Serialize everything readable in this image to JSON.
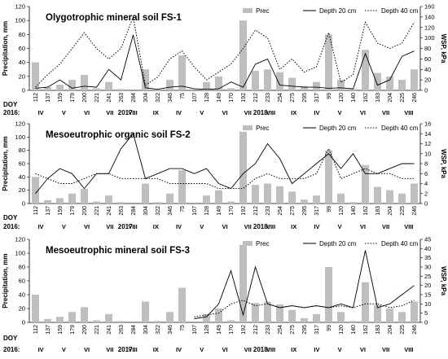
{
  "row_labels": {
    "doy": "DOY",
    "year": "2016:"
  },
  "months": [
    "IV",
    "V",
    "VI",
    "VII",
    "VIII",
    "IX",
    "IV",
    "V",
    "VI",
    "VII",
    "VIII",
    "IX",
    "IV",
    "V",
    "VI",
    "VII",
    "VIII"
  ],
  "years": [
    {
      "label": "2017:",
      "at_index": 14
    },
    {
      "label": "2018:",
      "at_index": 32
    }
  ],
  "colors": {
    "bars": "#bfbfbf",
    "line20": "#000000",
    "line40": "#000000"
  },
  "chart_data": [
    {
      "type": "bar",
      "title": "Olygotrophic mineral soil FS-1",
      "xlabel": "DOY",
      "ylabel": "Precipitation, mm",
      "y2label": "WSP, kPa",
      "ylim": [
        0,
        120
      ],
      "y2lim": [
        0,
        160
      ],
      "yticks": [
        0,
        20,
        40,
        60,
        80,
        100,
        120
      ],
      "y2ticks": [
        0,
        20,
        40,
        60,
        80,
        100,
        120,
        140,
        160
      ],
      "legend": [
        "Prec",
        "Depth 20 cm",
        "Depth 40 cm"
      ],
      "legend_position": "top-right",
      "categories": [
        "112",
        "137",
        "159",
        "179",
        "200",
        "221",
        "241",
        "263",
        "284",
        "304",
        "322",
        "346",
        "75",
        "107",
        "128",
        "149",
        "170",
        "192",
        "212",
        "233",
        "254",
        "275",
        "295",
        "317",
        "99",
        "120",
        "140",
        "162",
        "183",
        "204",
        "225",
        "246"
      ],
      "series": [
        {
          "name": "Prec",
          "kind": "bar",
          "values": [
            40,
            5,
            8,
            15,
            22,
            3,
            12,
            2,
            0,
            30,
            2,
            15,
            50,
            0,
            12,
            20,
            3,
            100,
            28,
            30,
            26,
            18,
            6,
            12,
            80,
            15,
            2,
            58,
            25,
            20,
            15,
            30
          ]
        },
        {
          "name": "Depth 20 cm",
          "kind": "line",
          "values": [
            4,
            6,
            20,
            4,
            8,
            6,
            40,
            20,
            106,
            5,
            2,
            6,
            8,
            3,
            2,
            3,
            16,
            6,
            50,
            60,
            10,
            8,
            6,
            6,
            4,
            5,
            3,
            70,
            10,
            20,
            65,
            75
          ]
        },
        {
          "name": "Depth 40 cm",
          "kind": "dotted",
          "values": [
            6,
            30,
            50,
            80,
            110,
            80,
            60,
            80,
            140,
            10,
            25,
            60,
            75,
            45,
            20,
            35,
            50,
            80,
            115,
            100,
            40,
            60,
            35,
            45,
            110,
            15,
            30,
            130,
            90,
            80,
            90,
            130
          ]
        }
      ]
    },
    {
      "type": "bar",
      "title": "Mesoeutrophic organic soil FS-2",
      "xlabel": "DOY",
      "ylabel": "Precipitation, mm",
      "y2label": "WSP, kPa",
      "ylim": [
        0,
        120
      ],
      "y2lim": [
        0,
        16
      ],
      "yticks": [
        0,
        20,
        40,
        60,
        80,
        100,
        120
      ],
      "y2ticks": [
        0,
        2,
        4,
        6,
        8,
        10,
        12,
        14,
        16
      ],
      "legend": [
        "Prec",
        "Depth 20 cm",
        "Depth 40 cm"
      ],
      "legend_position": "top-right",
      "categories": [
        "112",
        "137",
        "159",
        "179",
        "200",
        "221",
        "241",
        "263",
        "284",
        "304",
        "322",
        "346",
        "75",
        "107",
        "128",
        "149",
        "170",
        "192",
        "212",
        "233",
        "254",
        "275",
        "295",
        "317",
        "99",
        "120",
        "140",
        "162",
        "183",
        "204",
        "225",
        "246"
      ],
      "series": [
        {
          "name": "Prec",
          "kind": "bar",
          "values": [
            40,
            5,
            8,
            15,
            22,
            3,
            12,
            2,
            0,
            30,
            2,
            15,
            50,
            0,
            12,
            20,
            3,
            108,
            28,
            30,
            26,
            18,
            6,
            12,
            80,
            15,
            2,
            58,
            25,
            20,
            15,
            30
          ]
        },
        {
          "name": "Depth 20 cm",
          "kind": "line",
          "values": [
            2,
            5,
            7,
            6,
            3,
            6,
            6,
            11,
            14,
            5,
            6,
            7,
            7,
            6,
            7,
            4,
            3,
            6,
            8,
            12,
            9,
            4,
            6,
            8,
            10,
            7,
            10,
            6,
            6,
            7,
            8,
            8
          ]
        },
        {
          "name": "Depth 40 cm",
          "kind": "dotted",
          "values": [
            6,
            5,
            4,
            4,
            5,
            6,
            6,
            5,
            5,
            5,
            5,
            4,
            4,
            4,
            4,
            3,
            3,
            3,
            5,
            6,
            5,
            5,
            5,
            6,
            11,
            5,
            6,
            7,
            6,
            6,
            5,
            5
          ]
        }
      ]
    },
    {
      "type": "bar",
      "title": "Mesoeutrophic mineral soil FS-3",
      "xlabel": "DOY",
      "ylabel": "Precipitation, mm",
      "y2label": "WSP, kPa",
      "ylim": [
        0,
        120
      ],
      "y2lim": [
        0,
        45
      ],
      "yticks": [
        0,
        20,
        40,
        60,
        80,
        100,
        120
      ],
      "y2ticks": [
        0,
        5,
        10,
        15,
        20,
        25,
        30,
        35,
        40,
        45
      ],
      "legend": [
        "Prec",
        "Depth 20 cm",
        "Depth 40 cm"
      ],
      "legend_position": "top-right",
      "categories": [
        "112",
        "137",
        "159",
        "179",
        "200",
        "221",
        "241",
        "263",
        "284",
        "304",
        "322",
        "346",
        "75",
        "107",
        "128",
        "149",
        "170",
        "192",
        "212",
        "233",
        "254",
        "275",
        "295",
        "317",
        "99",
        "120",
        "140",
        "162",
        "183",
        "204",
        "225",
        "246"
      ],
      "series": [
        {
          "name": "Prec",
          "kind": "bar",
          "values": [
            40,
            5,
            8,
            15,
            22,
            3,
            12,
            2,
            0,
            30,
            2,
            15,
            50,
            0,
            12,
            20,
            3,
            112,
            28,
            30,
            26,
            18,
            6,
            12,
            80,
            15,
            2,
            58,
            25,
            20,
            15,
            30
          ]
        },
        {
          "name": "Depth 20 cm",
          "kind": "line",
          "values": [
            null,
            null,
            null,
            null,
            null,
            null,
            null,
            null,
            null,
            null,
            null,
            null,
            null,
            2,
            3,
            10,
            28,
            4,
            30,
            10,
            8,
            9,
            8,
            9,
            8,
            10,
            8,
            39,
            8,
            10,
            15,
            20
          ]
        },
        {
          "name": "Depth 40 cm",
          "kind": "dotted",
          "values": [
            null,
            null,
            null,
            null,
            null,
            null,
            null,
            null,
            null,
            null,
            null,
            null,
            null,
            3,
            4,
            5,
            10,
            12,
            9,
            10,
            8,
            9,
            8,
            9,
            8,
            9,
            8,
            10,
            10,
            8,
            9,
            12
          ]
        }
      ]
    }
  ]
}
